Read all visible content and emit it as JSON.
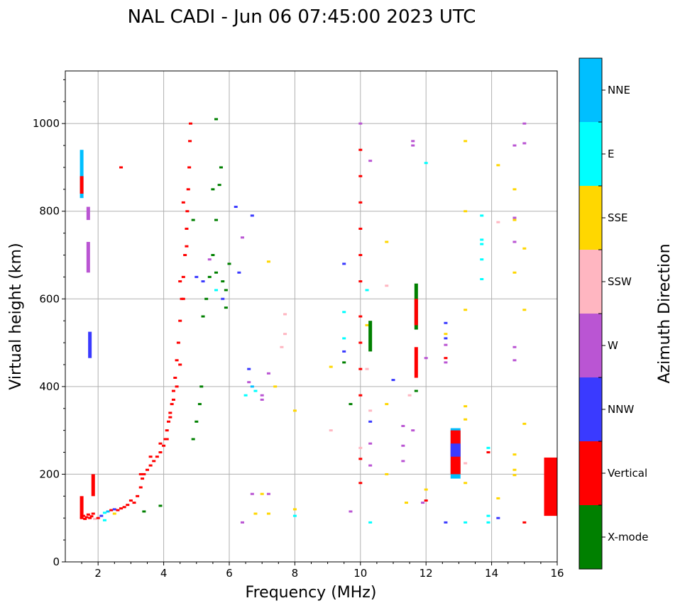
{
  "chart_data": {
    "type": "scatter",
    "title": "NAL CADI - Jun 06 07:45:00 2023 UTC",
    "xlabel": "Frequency (MHz)",
    "ylabel": "Virtual height (km)",
    "xlim": [
      1,
      16
    ],
    "ylim": [
      0,
      1120
    ],
    "xticks": [
      2,
      4,
      6,
      8,
      10,
      12,
      14,
      16
    ],
    "yticks": [
      0,
      200,
      400,
      600,
      800,
      1000
    ],
    "grid": true,
    "colorbar": {
      "label": "Azimuth Direction",
      "categories": [
        "X-mode",
        "Vertical",
        "NNW",
        "W",
        "SSW",
        "SSE",
        "E",
        "NNE"
      ],
      "colors": [
        "#008000",
        "#ff0000",
        "#3a3aff",
        "#ba55d3",
        "#ffb6c1",
        "#ffd700",
        "#00ffff",
        "#00bfff"
      ]
    },
    "point_format": [
      "frequency_mhz",
      "height_km",
      "direction_index"
    ],
    "points": [
      [
        1.5,
        100,
        1
      ],
      [
        1.55,
        105,
        1
      ],
      [
        1.6,
        98,
        1
      ],
      [
        1.65,
        102,
        1
      ],
      [
        1.7,
        108,
        1
      ],
      [
        1.75,
        100,
        1
      ],
      [
        1.8,
        104,
        1
      ],
      [
        1.85,
        110,
        1
      ],
      [
        1.9,
        98,
        4
      ],
      [
        2.0,
        100,
        1
      ],
      [
        2.1,
        105,
        2
      ],
      [
        2.2,
        112,
        6
      ],
      [
        2.3,
        115,
        7
      ],
      [
        2.4,
        118,
        1
      ],
      [
        2.5,
        120,
        2
      ],
      [
        2.6,
        118,
        1
      ],
      [
        2.7,
        122,
        1
      ],
      [
        2.8,
        125,
        1
      ],
      [
        2.9,
        130,
        1
      ],
      [
        3.0,
        140,
        1
      ],
      [
        3.1,
        135,
        1
      ],
      [
        3.2,
        150,
        1
      ],
      [
        3.3,
        170,
        1
      ],
      [
        3.35,
        190,
        1
      ],
      [
        3.4,
        200,
        1
      ],
      [
        3.5,
        210,
        1
      ],
      [
        3.6,
        220,
        1
      ],
      [
        3.7,
        230,
        1
      ],
      [
        3.8,
        240,
        1
      ],
      [
        3.9,
        250,
        1
      ],
      [
        4.0,
        265,
        1
      ],
      [
        4.05,
        280,
        1
      ],
      [
        4.1,
        300,
        1
      ],
      [
        4.15,
        320,
        1
      ],
      [
        4.2,
        340,
        1
      ],
      [
        4.25,
        360,
        1
      ],
      [
        4.3,
        390,
        1
      ],
      [
        4.35,
        420,
        1
      ],
      [
        4.4,
        460,
        1
      ],
      [
        4.45,
        500,
        1
      ],
      [
        4.5,
        550,
        1
      ],
      [
        4.55,
        600,
        1
      ],
      [
        4.6,
        650,
        1
      ],
      [
        4.65,
        700,
        1
      ],
      [
        4.7,
        760,
        1
      ],
      [
        4.72,
        800,
        1
      ],
      [
        4.75,
        850,
        1
      ],
      [
        4.78,
        900,
        1
      ],
      [
        4.8,
        960,
        1
      ],
      [
        4.82,
        1000,
        1
      ],
      [
        3.3,
        200,
        1
      ],
      [
        3.6,
        240,
        1
      ],
      [
        3.9,
        270,
        1
      ],
      [
        4.1,
        280,
        1
      ],
      [
        4.2,
        330,
        1
      ],
      [
        4.3,
        370,
        1
      ],
      [
        4.4,
        400,
        1
      ],
      [
        4.5,
        450,
        1
      ],
      [
        4.6,
        600,
        1
      ],
      [
        4.7,
        720,
        1
      ],
      [
        4.6,
        820,
        1
      ],
      [
        4.5,
        640,
        1
      ],
      [
        2.7,
        900,
        1
      ],
      [
        2.2,
        95,
        6
      ],
      [
        2.5,
        110,
        5
      ],
      [
        3.4,
        115,
        0
      ],
      [
        3.9,
        128,
        0
      ],
      [
        4.9,
        280,
        0
      ],
      [
        5.0,
        320,
        0
      ],
      [
        5.1,
        360,
        0
      ],
      [
        5.15,
        400,
        0
      ],
      [
        5.2,
        560,
        0
      ],
      [
        5.3,
        600,
        0
      ],
      [
        5.4,
        650,
        0
      ],
      [
        5.5,
        700,
        0
      ],
      [
        5.6,
        780,
        0
      ],
      [
        5.7,
        860,
        0
      ],
      [
        5.75,
        900,
        0
      ],
      [
        5.8,
        640,
        0
      ],
      [
        5.9,
        620,
        0
      ],
      [
        6.0,
        680,
        0
      ],
      [
        5.5,
        850,
        0
      ],
      [
        5.6,
        1010,
        0
      ],
      [
        4.9,
        780,
        0
      ],
      [
        5.6,
        660,
        0
      ],
      [
        5.9,
        580,
        0
      ],
      [
        5.0,
        650,
        2
      ],
      [
        5.2,
        640,
        2
      ],
      [
        5.6,
        620,
        6
      ],
      [
        5.8,
        600,
        2
      ],
      [
        6.3,
        660,
        2
      ],
      [
        6.4,
        740,
        3
      ],
      [
        6.7,
        790,
        2
      ],
      [
        6.2,
        810,
        2
      ],
      [
        5.4,
        690,
        3
      ],
      [
        6.5,
        380,
        6
      ],
      [
        6.6,
        410,
        3
      ],
      [
        6.7,
        400,
        7
      ],
      [
        6.8,
        390,
        6
      ],
      [
        7.0,
        380,
        3
      ],
      [
        7.2,
        430,
        3
      ],
      [
        6.7,
        155,
        3
      ],
      [
        7.0,
        155,
        5
      ],
      [
        7.2,
        155,
        3
      ],
      [
        6.4,
        90,
        3
      ],
      [
        6.8,
        110,
        5
      ],
      [
        7.2,
        110,
        5
      ],
      [
        7.4,
        400,
        5
      ],
      [
        7.6,
        490,
        4
      ],
      [
        7.7,
        520,
        4
      ],
      [
        8.0,
        345,
        5
      ],
      [
        8.0,
        105,
        6
      ],
      [
        8.0,
        120,
        5
      ],
      [
        7.2,
        685,
        5
      ],
      [
        7.7,
        565,
        4
      ],
      [
        6.6,
        440,
        2
      ],
      [
        7.0,
        370,
        3
      ],
      [
        9.1,
        300,
        4
      ],
      [
        9.1,
        445,
        5
      ],
      [
        9.5,
        570,
        6
      ],
      [
        9.5,
        480,
        2
      ],
      [
        9.5,
        680,
        2
      ],
      [
        9.5,
        455,
        0
      ],
      [
        9.5,
        510,
        6
      ],
      [
        9.7,
        360,
        0
      ],
      [
        9.7,
        115,
        3
      ],
      [
        10.0,
        1000,
        3
      ],
      [
        10.0,
        940,
        1
      ],
      [
        10.0,
        880,
        1
      ],
      [
        10.0,
        820,
        1
      ],
      [
        10.0,
        760,
        1
      ],
      [
        10.0,
        700,
        1
      ],
      [
        10.0,
        640,
        1
      ],
      [
        10.0,
        560,
        1
      ],
      [
        10.0,
        500,
        1
      ],
      [
        10.0,
        440,
        1
      ],
      [
        10.0,
        380,
        1
      ],
      [
        10.0,
        260,
        4
      ],
      [
        10.0,
        235,
        1
      ],
      [
        10.0,
        180,
        1
      ],
      [
        10.2,
        540,
        5
      ],
      [
        10.2,
        620,
        6
      ],
      [
        10.2,
        440,
        4
      ],
      [
        10.3,
        345,
        4
      ],
      [
        10.3,
        320,
        2
      ],
      [
        10.3,
        270,
        3
      ],
      [
        10.3,
        220,
        3
      ],
      [
        10.3,
        90,
        6
      ],
      [
        10.3,
        915,
        3
      ],
      [
        10.8,
        730,
        5
      ],
      [
        10.8,
        630,
        4
      ],
      [
        10.8,
        360,
        5
      ],
      [
        10.8,
        200,
        5
      ],
      [
        11.0,
        415,
        2
      ],
      [
        11.3,
        310,
        3
      ],
      [
        11.3,
        265,
        3
      ],
      [
        11.3,
        230,
        3
      ],
      [
        11.4,
        135,
        5
      ],
      [
        11.5,
        380,
        4
      ],
      [
        11.6,
        300,
        3
      ],
      [
        11.6,
        950,
        3
      ],
      [
        11.6,
        960,
        3
      ],
      [
        11.7,
        390,
        0
      ],
      [
        12.0,
        910,
        6
      ],
      [
        12.0,
        465,
        3
      ],
      [
        12.0,
        165,
        5
      ],
      [
        12.0,
        140,
        1
      ],
      [
        11.9,
        135,
        3
      ],
      [
        12.6,
        545,
        2
      ],
      [
        12.6,
        520,
        5
      ],
      [
        12.6,
        510,
        2
      ],
      [
        12.6,
        495,
        3
      ],
      [
        12.6,
        465,
        1
      ],
      [
        12.6,
        455,
        3
      ],
      [
        12.6,
        90,
        2
      ],
      [
        13.2,
        960,
        5
      ],
      [
        13.2,
        800,
        5
      ],
      [
        13.2,
        575,
        5
      ],
      [
        13.2,
        355,
        5
      ],
      [
        13.2,
        325,
        5
      ],
      [
        13.2,
        225,
        4
      ],
      [
        13.2,
        180,
        5
      ],
      [
        13.2,
        90,
        6
      ],
      [
        13.7,
        790,
        6
      ],
      [
        13.7,
        735,
        6
      ],
      [
        13.7,
        725,
        6
      ],
      [
        13.7,
        690,
        6
      ],
      [
        13.7,
        645,
        6
      ],
      [
        13.9,
        260,
        6
      ],
      [
        13.9,
        250,
        1
      ],
      [
        13.9,
        105,
        6
      ],
      [
        13.9,
        90,
        6
      ],
      [
        14.2,
        905,
        5
      ],
      [
        14.2,
        775,
        4
      ],
      [
        14.2,
        145,
        5
      ],
      [
        14.2,
        100,
        2
      ],
      [
        14.7,
        950,
        3
      ],
      [
        14.7,
        850,
        5
      ],
      [
        14.7,
        785,
        3
      ],
      [
        14.7,
        780,
        5
      ],
      [
        14.7,
        730,
        3
      ],
      [
        14.7,
        660,
        5
      ],
      [
        14.7,
        490,
        3
      ],
      [
        14.7,
        460,
        3
      ],
      [
        14.7,
        245,
        5
      ],
      [
        14.7,
        210,
        5
      ],
      [
        14.7,
        198,
        5
      ],
      [
        15.0,
        1000,
        3
      ],
      [
        15.0,
        955,
        3
      ],
      [
        15.0,
        715,
        5
      ],
      [
        15.0,
        575,
        5
      ],
      [
        15.0,
        315,
        5
      ],
      [
        15.0,
        90,
        1
      ]
    ],
    "segment_format": [
      "frequency_mhz",
      "height_from_km",
      "height_to_km",
      "direction_index"
    ],
    "segments": [
      [
        1.5,
        830,
        940,
        7
      ],
      [
        1.5,
        840,
        880,
        1
      ],
      [
        1.5,
        100,
        150,
        1
      ],
      [
        1.7,
        660,
        730,
        3
      ],
      [
        1.7,
        780,
        810,
        3
      ],
      [
        1.75,
        465,
        525,
        2
      ],
      [
        1.85,
        150,
        200,
        1
      ],
      [
        11.7,
        530,
        635,
        0
      ],
      [
        11.7,
        540,
        600,
        1
      ],
      [
        11.7,
        420,
        490,
        1
      ],
      [
        10.3,
        480,
        550,
        0
      ],
      [
        12.9,
        190,
        305,
        7
      ],
      [
        12.9,
        200,
        300,
        1
      ],
      [
        12.9,
        240,
        270,
        2
      ],
      [
        15.75,
        105,
        238,
        1
      ]
    ]
  }
}
